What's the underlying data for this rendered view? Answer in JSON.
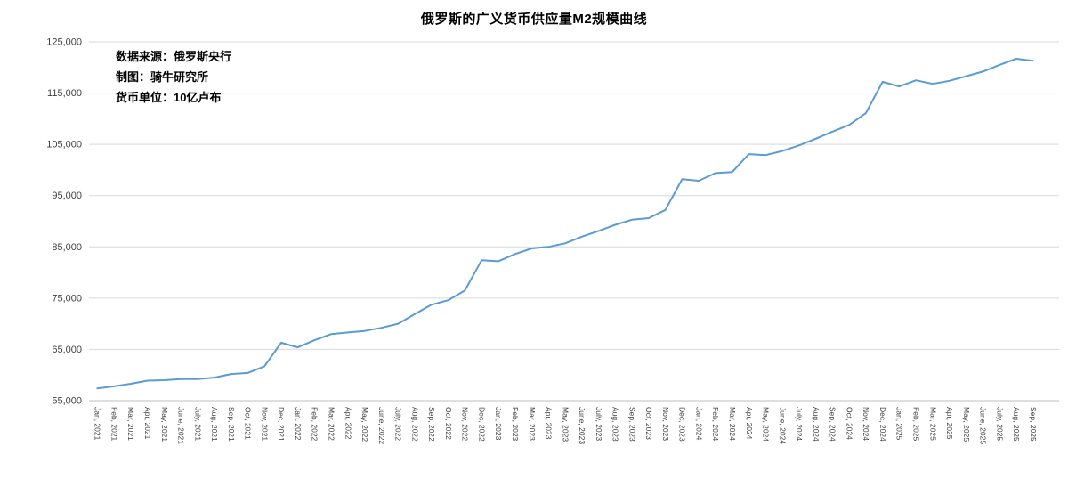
{
  "title": "俄罗斯的广义货币供应量M2规模曲线",
  "annotations": {
    "source": "数据来源：俄罗斯央行",
    "author": "制图：骑牛研究所",
    "unit": "货币单位：10亿卢布"
  },
  "colors": {
    "line": "#5B9BD5",
    "grid": "#D9D9D9",
    "axis": "#BFBFBF",
    "text": "#404040"
  },
  "chart_data": {
    "type": "line",
    "title": "俄罗斯的广义货币供应量M2规模曲线",
    "xlabel": "",
    "ylabel": "",
    "ylim": [
      55000,
      125000
    ],
    "ytick_step": 10000,
    "ytick_labels": [
      "55,000",
      "65,000",
      "75,000",
      "85,000",
      "95,000",
      "105,000",
      "115,000",
      "125,000"
    ],
    "grid": true,
    "legend": "none",
    "x": [
      "Jan, 2021",
      "Feb, 2021",
      "Mar, 2021",
      "Apr, 2021",
      "May, 2021",
      "June, 2021",
      "July, 2021",
      "Aug, 2021",
      "Sep, 2021",
      "Oct, 2021",
      "Nov, 2021",
      "Dec, 2021",
      "Jan, 2022",
      "Feb, 2022",
      "Mar, 2022",
      "Apr, 2022",
      "May, 2022",
      "June, 2022",
      "July, 2022",
      "Aug, 2022",
      "Sep, 2022",
      "Oct, 2022",
      "Nov, 2022",
      "Dec, 2022",
      "Jan, 2023",
      "Feb, 2023",
      "Mar, 2023",
      "Apr, 2023",
      "May, 2023",
      "June, 2023",
      "July, 2023",
      "Aug, 2023",
      "Sep, 2023",
      "Oct, 2023",
      "Nov, 2023",
      "Dec, 2023",
      "Jan, 2024",
      "Feb, 2024",
      "Mar, 2024",
      "Apr, 2024",
      "May, 2024",
      "June, 2024",
      "July, 2024",
      "Aug, 2024",
      "Sep, 2024",
      "Oct, 2024",
      "Nov, 2024",
      "Dec, 2024",
      "Jan, 2025",
      "Feb, 2025",
      "Mar, 2025",
      "Apr, 2025",
      "May, 2025",
      "June, 2025",
      "July, 2025",
      "Aug, 2025",
      "Sep, 2025"
    ],
    "series": [
      {
        "name": "M2",
        "values": [
          57400,
          57800,
          58300,
          58900,
          59000,
          59200,
          59200,
          59500,
          60200,
          60400,
          61700,
          66300,
          65400,
          66800,
          68000,
          68300,
          68600,
          69200,
          70000,
          71900,
          73700,
          74600,
          76500,
          82400,
          82200,
          83600,
          84700,
          85000,
          85700,
          87000,
          88100,
          89300,
          90300,
          90600,
          92200,
          98200,
          97900,
          99400,
          99600,
          103100,
          102900,
          103700,
          104800,
          106100,
          107500,
          108800,
          111100,
          117200,
          116300,
          117500,
          116800,
          117400,
          118300,
          119200,
          120500,
          121700,
          121300
        ]
      }
    ]
  }
}
